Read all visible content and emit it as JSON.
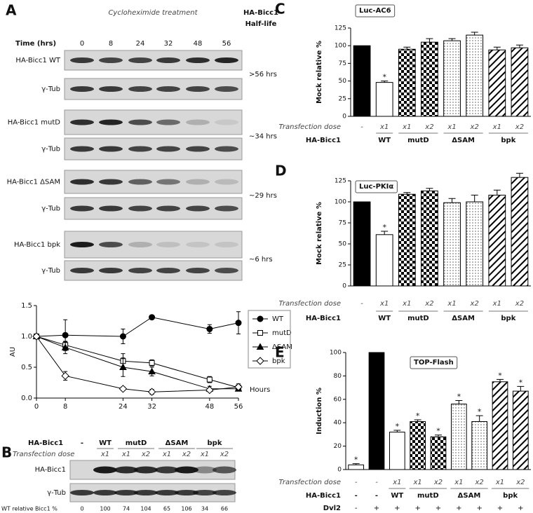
{
  "panels": {
    "a": "A",
    "b": "B",
    "c": "C",
    "d": "D",
    "e": "E"
  },
  "blot_a": {
    "treatment": "Cycloheximide treatment",
    "half_life_header": [
      "HA-Bicc1",
      "Half-life"
    ],
    "time_label": "Time (hrs)",
    "times": [
      "0",
      "8",
      "24",
      "32",
      "48",
      "56"
    ],
    "rows": [
      {
        "label": "HA-Bicc1 WT",
        "control": "γ-Tub",
        "half_life": ">56 hrs"
      },
      {
        "label": "HA-Bicc1 mutD",
        "control": "γ-Tub",
        "half_life": "~34 hrs"
      },
      {
        "label": "HA-Bicc1 ΔSAM",
        "control": "γ-Tub",
        "half_life": "~29 hrs"
      },
      {
        "label": "HA-Bicc1 bpk",
        "control": "γ-Tub",
        "half_life": "~6 hrs"
      }
    ]
  },
  "blot_b": {
    "construct_label": "HA-Bicc1",
    "dose_label": "Transfection dose",
    "constructs": [
      "-",
      "WT",
      "mutD",
      null,
      "ΔSAM",
      null,
      "bpk",
      null
    ],
    "doses": [
      null,
      "x1",
      "x1",
      "x2",
      "x1",
      "x2",
      "x1",
      "x2"
    ],
    "rows": [
      "HA-Bicc1",
      "γ-Tub"
    ],
    "quant_label": "WT relative Bicc1 %",
    "quant": [
      0,
      100,
      74,
      104,
      65,
      106,
      34,
      66
    ]
  },
  "chart_data": [
    {
      "type": "line",
      "x": [
        0,
        8,
        24,
        32,
        48,
        56
      ],
      "xlim": [
        0,
        56
      ],
      "xticks": [
        0,
        8,
        24,
        32,
        48,
        56
      ],
      "ylim": [
        0,
        1.5
      ],
      "yticks": [
        {
          "value": 0,
          "label": "0.0"
        },
        {
          "value": 0.5,
          "label": "0.5"
        },
        {
          "value": 1,
          "label": "1.0"
        },
        {
          "value": 1.5,
          "label": "1.5"
        }
      ],
      "x_label": "Hours",
      "y_label": "AU",
      "legend": "right",
      "series": [
        {
          "name": "WT",
          "color": "#000000",
          "marker": "circle-filled",
          "values": [
            1,
            1.02,
            1.0,
            1.31,
            1.12,
            1.22
          ],
          "errors": [
            0,
            0.25,
            0.12,
            0.03,
            0.07,
            0.18
          ]
        },
        {
          "name": "mutD",
          "color": "#000000",
          "marker": "square-open",
          "values": [
            1,
            0.86,
            0.6,
            0.57,
            0.3,
            0.17
          ],
          "errors": [
            0,
            0.05,
            0.12,
            0.05,
            0.05,
            0.04
          ]
        },
        {
          "name": "ΔSAM",
          "color": "#000000",
          "marker": "triangle-filled",
          "values": [
            1,
            0.82,
            0.5,
            0.43,
            0.15,
            0.15
          ],
          "errors": [
            0,
            0.1,
            0.15,
            0.07,
            0.04,
            0.03
          ]
        },
        {
          "name": "bpk",
          "color": "#000000",
          "marker": "diamond-open",
          "values": [
            1,
            0.36,
            0.15,
            0.1,
            0.13,
            0.18
          ],
          "errors": [
            0,
            0.07,
            0.03,
            0.04,
            0.03,
            0.05
          ]
        }
      ]
    },
    {
      "type": "bar",
      "title": "Luc-AC6",
      "y_label": "Mock relative %",
      "ylim": [
        0,
        125
      ],
      "yticks": [
        0,
        25,
        50,
        75,
        100,
        125
      ],
      "dose_label": "Transfection dose",
      "construct_label": "HA-Bicc1",
      "categories": [
        "-",
        "x1",
        "x1",
        "x2",
        "x1",
        "x2",
        "x1",
        "x2"
      ],
      "constructs": [
        null,
        "WT",
        "mutD",
        null,
        "ΔSAM",
        null,
        "bpk",
        null
      ],
      "values": [
        100,
        48,
        95,
        105,
        107,
        115,
        94,
        97
      ],
      "errors": [
        0,
        2,
        3,
        5,
        3,
        4,
        4,
        4
      ],
      "annotations": [
        null,
        "*",
        null,
        null,
        null,
        null,
        null,
        null
      ],
      "patterns": [
        "solid",
        "open",
        "checker",
        "checker",
        "dots",
        "dots",
        "hatch",
        "hatch"
      ],
      "color": "#000000"
    },
    {
      "type": "bar",
      "title": "Luc-PKIα",
      "y_label": "Mock relative %",
      "ylim": [
        0,
        125
      ],
      "yticks": [
        0,
        25,
        50,
        75,
        100,
        125
      ],
      "dose_label": "Transfection dose",
      "construct_label": "HA-Bicc1",
      "categories": [
        "-",
        "x1",
        "x1",
        "x2",
        "x1",
        "x2",
        "x1",
        "x2"
      ],
      "constructs": [
        null,
        "WT",
        "mutD",
        null,
        "ΔSAM",
        null,
        "bpk",
        null
      ],
      "values": [
        100,
        61,
        109,
        113,
        99,
        100,
        108,
        129
      ],
      "errors": [
        0,
        4,
        2,
        3,
        5,
        8,
        6,
        5
      ],
      "annotations": [
        null,
        "*",
        null,
        null,
        null,
        null,
        null,
        null
      ],
      "patterns": [
        "solid",
        "open",
        "checker",
        "checker",
        "dots",
        "dots",
        "hatch",
        "hatch"
      ],
      "color": "#000000"
    },
    {
      "type": "bar",
      "title": "TOP-Flash",
      "y_label": "Induction %",
      "ylim": [
        0,
        100
      ],
      "yticks": [
        0,
        20,
        40,
        60,
        80,
        100
      ],
      "dose_label": "Transfection dose",
      "construct_label": "HA-Bicc1",
      "dvl_label": "Dvl2",
      "categories": [
        "-",
        "-",
        "x1",
        "x1",
        "x2",
        "x1",
        "x2",
        "x1",
        "x2"
      ],
      "constructs": [
        "-",
        "-",
        "WT",
        "mutD",
        null,
        "ΔSAM",
        null,
        "bpk",
        null
      ],
      "dvl": [
        "-",
        "+",
        "+",
        "+",
        "+",
        "+",
        "+",
        "+",
        "+"
      ],
      "values": [
        4,
        100,
        32,
        41,
        28,
        56,
        41,
        75,
        67
      ],
      "errors": [
        1,
        0,
        1.5,
        1.5,
        1.5,
        3,
        5,
        2,
        4
      ],
      "annotations": [
        "*",
        null,
        "*",
        "*",
        "*",
        "*",
        "*",
        "*",
        "*"
      ],
      "patterns": [
        "open",
        "solid",
        "open",
        "checker",
        "checker",
        "dots",
        "dots",
        "hatch",
        "hatch"
      ],
      "color": "#000000"
    }
  ]
}
